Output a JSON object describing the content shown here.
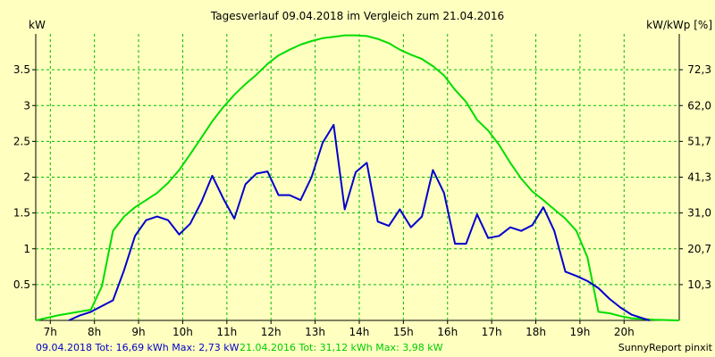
{
  "chart_data": {
    "type": "line",
    "title": "Tagesverlauf 09.04.2018 im Vergleich zum 21.04.2016",
    "ylabel_left": "kW",
    "ylabel_right": "kW/kWp [%]",
    "x_range": [
      6.67,
      21.25
    ],
    "ylim": [
      0,
      4.0
    ],
    "x_ticks": [
      {
        "value": 7,
        "label": "7h"
      },
      {
        "value": 8,
        "label": "8h"
      },
      {
        "value": 9,
        "label": "9h"
      },
      {
        "value": 10,
        "label": "10h"
      },
      {
        "value": 11,
        "label": "11h"
      },
      {
        "value": 12,
        "label": "12h"
      },
      {
        "value": 13,
        "label": "13h"
      },
      {
        "value": 14,
        "label": "14h"
      },
      {
        "value": 15,
        "label": "15h"
      },
      {
        "value": 16,
        "label": "16h"
      },
      {
        "value": 17,
        "label": "17h"
      },
      {
        "value": 18,
        "label": "18h"
      },
      {
        "value": 19,
        "label": "19h"
      },
      {
        "value": 20,
        "label": "20h"
      }
    ],
    "y_ticks_left": [
      {
        "value": 0.5,
        "label": "0.5"
      },
      {
        "value": 1.0,
        "label": "1"
      },
      {
        "value": 1.5,
        "label": "1.5"
      },
      {
        "value": 2.0,
        "label": "2"
      },
      {
        "value": 2.5,
        "label": "2.5"
      },
      {
        "value": 3.0,
        "label": "3"
      },
      {
        "value": 3.5,
        "label": "3.5"
      }
    ],
    "y_ticks_right": [
      {
        "value": 0.5,
        "label": "10,3"
      },
      {
        "value": 1.0,
        "label": "20,7"
      },
      {
        "value": 1.5,
        "label": "31,0"
      },
      {
        "value": 2.0,
        "label": "41,3"
      },
      {
        "value": 2.5,
        "label": "51,7"
      },
      {
        "value": 3.0,
        "label": "62,0"
      },
      {
        "value": 3.5,
        "label": "72,3"
      }
    ],
    "grid": true,
    "series": [
      {
        "name": "09.04.2018",
        "color": "#0000cc",
        "points": [
          [
            7.42,
            0.0
          ],
          [
            7.67,
            0.07
          ],
          [
            7.92,
            0.12
          ],
          [
            8.17,
            0.2
          ],
          [
            8.42,
            0.28
          ],
          [
            8.67,
            0.7
          ],
          [
            8.92,
            1.18
          ],
          [
            9.17,
            1.4
          ],
          [
            9.42,
            1.45
          ],
          [
            9.67,
            1.4
          ],
          [
            9.92,
            1.2
          ],
          [
            10.17,
            1.35
          ],
          [
            10.42,
            1.65
          ],
          [
            10.67,
            2.02
          ],
          [
            10.92,
            1.7
          ],
          [
            11.17,
            1.42
          ],
          [
            11.42,
            1.9
          ],
          [
            11.67,
            2.05
          ],
          [
            11.92,
            2.08
          ],
          [
            12.17,
            1.75
          ],
          [
            12.42,
            1.75
          ],
          [
            12.67,
            1.68
          ],
          [
            12.92,
            2.0
          ],
          [
            13.17,
            2.48
          ],
          [
            13.42,
            2.73
          ],
          [
            13.67,
            1.55
          ],
          [
            13.92,
            2.07
          ],
          [
            14.17,
            2.2
          ],
          [
            14.42,
            1.38
          ],
          [
            14.67,
            1.32
          ],
          [
            14.92,
            1.55
          ],
          [
            15.17,
            1.3
          ],
          [
            15.42,
            1.45
          ],
          [
            15.67,
            2.1
          ],
          [
            15.92,
            1.78
          ],
          [
            16.17,
            1.07
          ],
          [
            16.42,
            1.07
          ],
          [
            16.67,
            1.48
          ],
          [
            16.92,
            1.15
          ],
          [
            17.17,
            1.18
          ],
          [
            17.42,
            1.3
          ],
          [
            17.67,
            1.25
          ],
          [
            17.92,
            1.33
          ],
          [
            18.17,
            1.58
          ],
          [
            18.42,
            1.25
          ],
          [
            18.67,
            0.68
          ],
          [
            18.92,
            0.62
          ],
          [
            19.17,
            0.55
          ],
          [
            19.42,
            0.45
          ],
          [
            19.67,
            0.3
          ],
          [
            19.92,
            0.18
          ],
          [
            20.17,
            0.08
          ],
          [
            20.42,
            0.03
          ],
          [
            20.58,
            0.0
          ]
        ]
      },
      {
        "name": "21.04.2016",
        "color": "#00dd00",
        "points": [
          [
            6.67,
            0.0
          ],
          [
            7.17,
            0.07
          ],
          [
            7.92,
            0.15
          ],
          [
            8.17,
            0.48
          ],
          [
            8.42,
            1.25
          ],
          [
            8.67,
            1.45
          ],
          [
            8.92,
            1.58
          ],
          [
            9.17,
            1.68
          ],
          [
            9.42,
            1.78
          ],
          [
            9.67,
            1.92
          ],
          [
            9.92,
            2.1
          ],
          [
            10.17,
            2.32
          ],
          [
            10.42,
            2.55
          ],
          [
            10.67,
            2.78
          ],
          [
            10.92,
            2.98
          ],
          [
            11.17,
            3.15
          ],
          [
            11.42,
            3.3
          ],
          [
            11.67,
            3.43
          ],
          [
            11.92,
            3.58
          ],
          [
            12.17,
            3.7
          ],
          [
            12.42,
            3.78
          ],
          [
            12.67,
            3.85
          ],
          [
            12.92,
            3.9
          ],
          [
            13.17,
            3.94
          ],
          [
            13.42,
            3.96
          ],
          [
            13.67,
            3.98
          ],
          [
            13.92,
            3.98
          ],
          [
            14.17,
            3.97
          ],
          [
            14.42,
            3.93
          ],
          [
            14.67,
            3.87
          ],
          [
            14.92,
            3.78
          ],
          [
            15.17,
            3.71
          ],
          [
            15.42,
            3.65
          ],
          [
            15.67,
            3.55
          ],
          [
            15.92,
            3.42
          ],
          [
            16.17,
            3.22
          ],
          [
            16.42,
            3.05
          ],
          [
            16.67,
            2.8
          ],
          [
            16.92,
            2.65
          ],
          [
            17.17,
            2.45
          ],
          [
            17.42,
            2.2
          ],
          [
            17.67,
            1.98
          ],
          [
            17.92,
            1.8
          ],
          [
            18.17,
            1.68
          ],
          [
            18.42,
            1.55
          ],
          [
            18.67,
            1.42
          ],
          [
            18.92,
            1.25
          ],
          [
            19.17,
            0.88
          ],
          [
            19.42,
            0.12
          ],
          [
            19.67,
            0.1
          ],
          [
            19.92,
            0.06
          ],
          [
            20.17,
            0.03
          ],
          [
            20.42,
            0.02
          ],
          [
            20.67,
            0.01
          ],
          [
            21.25,
            0.0
          ]
        ]
      }
    ],
    "footer": {
      "left": "09.04.2018 Tot: 16,69 kWh Max: 2,73 kW",
      "left_color": "#0000cc",
      "middle": "21.04.2016 Tot: 31,12 kWh Max: 3,98 kW",
      "middle_color": "#00cc00",
      "right": "SunnyReport pinxit"
    }
  }
}
